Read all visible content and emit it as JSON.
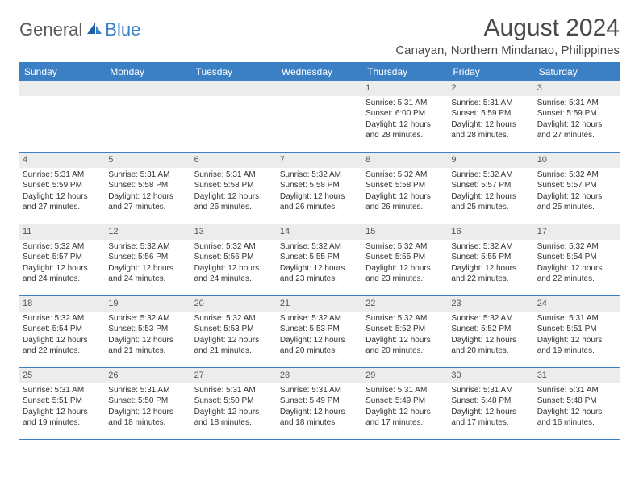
{
  "logo": {
    "general": "General",
    "blue": "Blue"
  },
  "title": "August 2024",
  "location": "Canayan, Northern Mindanao, Philippines",
  "accent_color": "#3b7fc4",
  "header_stripe_color": "#ececec",
  "text_color": "#333333",
  "weekdays": [
    "Sunday",
    "Monday",
    "Tuesday",
    "Wednesday",
    "Thursday",
    "Friday",
    "Saturday"
  ],
  "weeks": [
    [
      {
        "empty": true
      },
      {
        "empty": true
      },
      {
        "empty": true
      },
      {
        "empty": true
      },
      {
        "n": "1",
        "sunrise": "Sunrise: 5:31 AM",
        "sunset": "Sunset: 6:00 PM",
        "daylight": "Daylight: 12 hours and 28 minutes."
      },
      {
        "n": "2",
        "sunrise": "Sunrise: 5:31 AM",
        "sunset": "Sunset: 5:59 PM",
        "daylight": "Daylight: 12 hours and 28 minutes."
      },
      {
        "n": "3",
        "sunrise": "Sunrise: 5:31 AM",
        "sunset": "Sunset: 5:59 PM",
        "daylight": "Daylight: 12 hours and 27 minutes."
      }
    ],
    [
      {
        "n": "4",
        "sunrise": "Sunrise: 5:31 AM",
        "sunset": "Sunset: 5:59 PM",
        "daylight": "Daylight: 12 hours and 27 minutes."
      },
      {
        "n": "5",
        "sunrise": "Sunrise: 5:31 AM",
        "sunset": "Sunset: 5:58 PM",
        "daylight": "Daylight: 12 hours and 27 minutes."
      },
      {
        "n": "6",
        "sunrise": "Sunrise: 5:31 AM",
        "sunset": "Sunset: 5:58 PM",
        "daylight": "Daylight: 12 hours and 26 minutes."
      },
      {
        "n": "7",
        "sunrise": "Sunrise: 5:32 AM",
        "sunset": "Sunset: 5:58 PM",
        "daylight": "Daylight: 12 hours and 26 minutes."
      },
      {
        "n": "8",
        "sunrise": "Sunrise: 5:32 AM",
        "sunset": "Sunset: 5:58 PM",
        "daylight": "Daylight: 12 hours and 26 minutes."
      },
      {
        "n": "9",
        "sunrise": "Sunrise: 5:32 AM",
        "sunset": "Sunset: 5:57 PM",
        "daylight": "Daylight: 12 hours and 25 minutes."
      },
      {
        "n": "10",
        "sunrise": "Sunrise: 5:32 AM",
        "sunset": "Sunset: 5:57 PM",
        "daylight": "Daylight: 12 hours and 25 minutes."
      }
    ],
    [
      {
        "n": "11",
        "sunrise": "Sunrise: 5:32 AM",
        "sunset": "Sunset: 5:57 PM",
        "daylight": "Daylight: 12 hours and 24 minutes."
      },
      {
        "n": "12",
        "sunrise": "Sunrise: 5:32 AM",
        "sunset": "Sunset: 5:56 PM",
        "daylight": "Daylight: 12 hours and 24 minutes."
      },
      {
        "n": "13",
        "sunrise": "Sunrise: 5:32 AM",
        "sunset": "Sunset: 5:56 PM",
        "daylight": "Daylight: 12 hours and 24 minutes."
      },
      {
        "n": "14",
        "sunrise": "Sunrise: 5:32 AM",
        "sunset": "Sunset: 5:55 PM",
        "daylight": "Daylight: 12 hours and 23 minutes."
      },
      {
        "n": "15",
        "sunrise": "Sunrise: 5:32 AM",
        "sunset": "Sunset: 5:55 PM",
        "daylight": "Daylight: 12 hours and 23 minutes."
      },
      {
        "n": "16",
        "sunrise": "Sunrise: 5:32 AM",
        "sunset": "Sunset: 5:55 PM",
        "daylight": "Daylight: 12 hours and 22 minutes."
      },
      {
        "n": "17",
        "sunrise": "Sunrise: 5:32 AM",
        "sunset": "Sunset: 5:54 PM",
        "daylight": "Daylight: 12 hours and 22 minutes."
      }
    ],
    [
      {
        "n": "18",
        "sunrise": "Sunrise: 5:32 AM",
        "sunset": "Sunset: 5:54 PM",
        "daylight": "Daylight: 12 hours and 22 minutes."
      },
      {
        "n": "19",
        "sunrise": "Sunrise: 5:32 AM",
        "sunset": "Sunset: 5:53 PM",
        "daylight": "Daylight: 12 hours and 21 minutes."
      },
      {
        "n": "20",
        "sunrise": "Sunrise: 5:32 AM",
        "sunset": "Sunset: 5:53 PM",
        "daylight": "Daylight: 12 hours and 21 minutes."
      },
      {
        "n": "21",
        "sunrise": "Sunrise: 5:32 AM",
        "sunset": "Sunset: 5:53 PM",
        "daylight": "Daylight: 12 hours and 20 minutes."
      },
      {
        "n": "22",
        "sunrise": "Sunrise: 5:32 AM",
        "sunset": "Sunset: 5:52 PM",
        "daylight": "Daylight: 12 hours and 20 minutes."
      },
      {
        "n": "23",
        "sunrise": "Sunrise: 5:32 AM",
        "sunset": "Sunset: 5:52 PM",
        "daylight": "Daylight: 12 hours and 20 minutes."
      },
      {
        "n": "24",
        "sunrise": "Sunrise: 5:31 AM",
        "sunset": "Sunset: 5:51 PM",
        "daylight": "Daylight: 12 hours and 19 minutes."
      }
    ],
    [
      {
        "n": "25",
        "sunrise": "Sunrise: 5:31 AM",
        "sunset": "Sunset: 5:51 PM",
        "daylight": "Daylight: 12 hours and 19 minutes."
      },
      {
        "n": "26",
        "sunrise": "Sunrise: 5:31 AM",
        "sunset": "Sunset: 5:50 PM",
        "daylight": "Daylight: 12 hours and 18 minutes."
      },
      {
        "n": "27",
        "sunrise": "Sunrise: 5:31 AM",
        "sunset": "Sunset: 5:50 PM",
        "daylight": "Daylight: 12 hours and 18 minutes."
      },
      {
        "n": "28",
        "sunrise": "Sunrise: 5:31 AM",
        "sunset": "Sunset: 5:49 PM",
        "daylight": "Daylight: 12 hours and 18 minutes."
      },
      {
        "n": "29",
        "sunrise": "Sunrise: 5:31 AM",
        "sunset": "Sunset: 5:49 PM",
        "daylight": "Daylight: 12 hours and 17 minutes."
      },
      {
        "n": "30",
        "sunrise": "Sunrise: 5:31 AM",
        "sunset": "Sunset: 5:48 PM",
        "daylight": "Daylight: 12 hours and 17 minutes."
      },
      {
        "n": "31",
        "sunrise": "Sunrise: 5:31 AM",
        "sunset": "Sunset: 5:48 PM",
        "daylight": "Daylight: 12 hours and 16 minutes."
      }
    ]
  ]
}
